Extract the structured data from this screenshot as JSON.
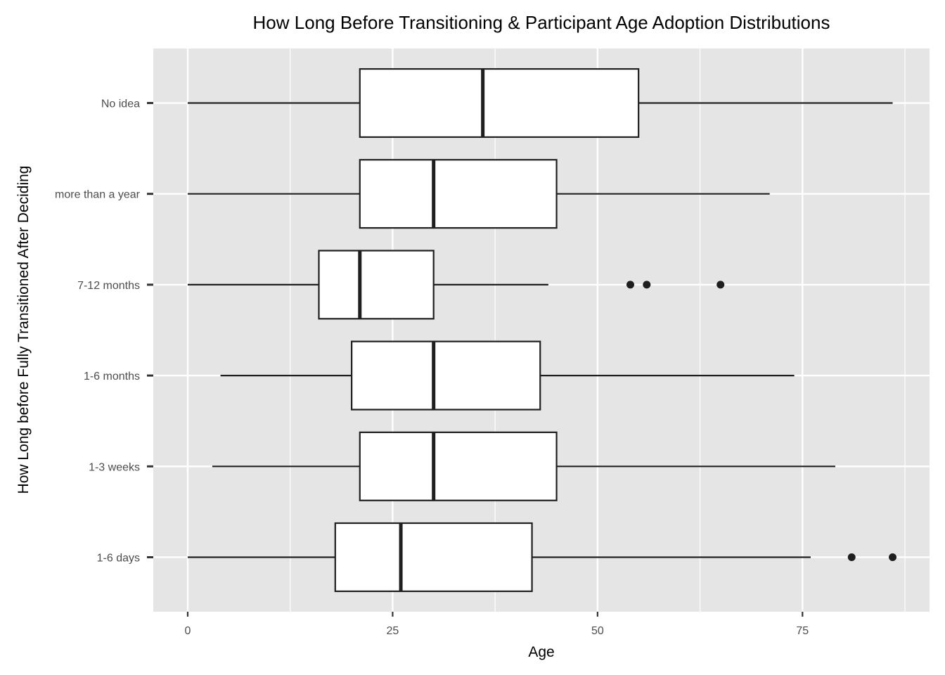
{
  "chart_data": {
    "type": "boxplot",
    "orientation": "horizontal",
    "title": "How Long Before Transitioning & Participant Age Adoption Distributions",
    "xlabel": "Age",
    "ylabel": "How Long before Fully Transitioned After Deciding",
    "xlim": [
      -4.2,
      90.5
    ],
    "x_ticks": [
      0,
      25,
      50,
      75
    ],
    "x_tick_labels": [
      "0",
      "25",
      "50",
      "75"
    ],
    "grid": true,
    "legend": "none",
    "colors": {
      "panel": "#e5e5e5",
      "grid": "#ffffff",
      "box_fill": "#ffffff",
      "box_stroke": "#1f1f1f",
      "outlier": "#1f1f1f"
    },
    "categories": [
      "1-6 days",
      "1-3 weeks",
      "1-6 months",
      "7-12 months",
      "more than a year",
      "No idea"
    ],
    "boxes": [
      {
        "category": "1-6 days",
        "whisker_low": 0,
        "q1": 18,
        "median": 26,
        "q3": 42,
        "whisker_high": 76,
        "outliers": [
          81,
          86
        ]
      },
      {
        "category": "1-3 weeks",
        "whisker_low": 3,
        "q1": 21,
        "median": 30,
        "q3": 45,
        "whisker_high": 79,
        "outliers": []
      },
      {
        "category": "1-6 months",
        "whisker_low": 4,
        "q1": 20,
        "median": 30,
        "q3": 43,
        "whisker_high": 74,
        "outliers": []
      },
      {
        "category": "7-12 months",
        "whisker_low": 0,
        "q1": 16,
        "median": 21,
        "q3": 30,
        "whisker_high": 44,
        "outliers": [
          54,
          56,
          65
        ]
      },
      {
        "category": "more than a year",
        "whisker_low": 0,
        "q1": 21,
        "median": 30,
        "q3": 45,
        "whisker_high": 71,
        "outliers": []
      },
      {
        "category": "No idea",
        "whisker_low": 0,
        "q1": 21,
        "median": 36,
        "q3": 55,
        "whisker_high": 86,
        "outliers": []
      }
    ]
  }
}
